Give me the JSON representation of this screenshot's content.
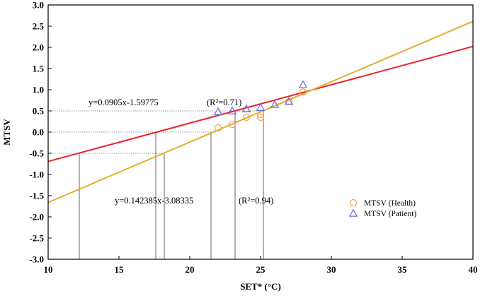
{
  "chart_data": {
    "type": "scatter",
    "xlabel": "SET* (°C)",
    "ylabel": "MTSV",
    "xlim": [
      10,
      40
    ],
    "ylim": [
      -3.0,
      3.0
    ],
    "x_ticks": [
      "10",
      "15",
      "20",
      "25",
      "30",
      "35",
      "40"
    ],
    "y_ticks": [
      "3.0",
      "2.5",
      "2.0",
      "1.5",
      "1.0",
      "0.5",
      "0.0",
      "-0.5",
      "-1.0",
      "-1.5",
      "-2.0",
      "-2.5",
      "-3.0"
    ],
    "grid": false,
    "legend_position": "lower-right",
    "series": [
      {
        "name": "MTSV (Health)",
        "marker": "circle",
        "color": "#f5a04a",
        "points": [
          {
            "x": 22.0,
            "y": 0.1
          },
          {
            "x": 23.0,
            "y": 0.18
          },
          {
            "x": 24.0,
            "y": 0.35
          },
          {
            "x": 25.0,
            "y": 0.35
          },
          {
            "x": 25.0,
            "y": 0.42
          },
          {
            "x": 27.0,
            "y": 0.72
          },
          {
            "x": 28.0,
            "y": 0.95
          }
        ]
      },
      {
        "name": "MTSV (Patient)",
        "marker": "triangle",
        "color": "#6a6ae0",
        "points": [
          {
            "x": 22.0,
            "y": 0.48
          },
          {
            "x": 23.0,
            "y": 0.5
          },
          {
            "x": 24.0,
            "y": 0.55
          },
          {
            "x": 25.0,
            "y": 0.58
          },
          {
            "x": 26.0,
            "y": 0.65
          },
          {
            "x": 27.0,
            "y": 0.72
          },
          {
            "x": 28.0,
            "y": 1.12
          }
        ]
      }
    ],
    "fits": [
      {
        "slope": 0.0905,
        "intercept": -1.59775,
        "color": "#e8232a",
        "equation": "y=0.0905x-1.59775",
        "r2": "(R²=0.71)"
      },
      {
        "slope": 0.142385,
        "intercept": -3.08335,
        "color": "#e0b02a",
        "equation": "y=0.142385x-3.08335",
        "r2": "(R²=0.94)"
      }
    ],
    "guide_lines": [
      {
        "y": 0.5,
        "x_values": [
          23.2,
          25.2
        ]
      },
      {
        "y": 0.0,
        "x_values": [
          17.6,
          21.5
        ]
      },
      {
        "y": -0.5,
        "x_values": [
          12.2,
          18.2
        ]
      }
    ]
  }
}
